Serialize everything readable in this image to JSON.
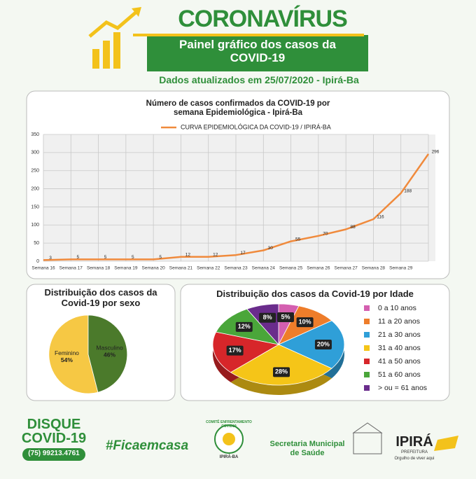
{
  "header": {
    "title": "CORONAVÍRUS",
    "subtitle": "Painel gráfico dos casos da COVID-19",
    "updated": "Dados atualizados em 25/07/2020 - Ipirá-Ba"
  },
  "chart_data": [
    {
      "type": "line",
      "title": "Número de casos confirmados da COVID-19 por semana Epidemiológica - Ipirá-Ba",
      "categories": [
        "Semana 16",
        "Semana 17",
        "Semana 18",
        "Semana 19",
        "Semana 20",
        "Semana 21",
        "Semana 22",
        "Semana 23",
        "Semana 24",
        "Semana 25",
        "Semana 26",
        "Semana 27",
        "Semana 28",
        "Semana 29",
        null
      ],
      "series": [
        {
          "name": "CURVA EPIDEMIOLÓGICA DA COVID-19 / IPIRÁ-BA",
          "color": "#f08a3c",
          "values": [
            3,
            5,
            5,
            5,
            5,
            12,
            12,
            17,
            30,
            55,
            70,
            88,
            116,
            188,
            296
          ]
        }
      ],
      "ylim": [
        0,
        350
      ],
      "yticks": [
        0,
        50,
        100,
        150,
        200,
        250,
        300,
        350
      ],
      "grid": true,
      "legend": "top"
    },
    {
      "type": "pie",
      "title": "Distribuição dos casos da Covid-19 por sexo",
      "categories": [
        "Feminino",
        "Masculino"
      ],
      "values": [
        54,
        46
      ],
      "value_labels": [
        "54%",
        "46%"
      ],
      "colors": [
        "#f6c844",
        "#4b7a2b"
      ]
    },
    {
      "type": "pie",
      "title": "Distribuição dos casos da Covid-19 por Idade",
      "categories": [
        "0 a 10 anos",
        "11 a 20 anos",
        "21 a 30 anos",
        "31 a 40 anos",
        "41 a 50 anos",
        "51 a 60 anos",
        "> ou = 61 anos"
      ],
      "values": [
        5,
        10,
        20,
        28,
        17,
        12,
        8
      ],
      "value_labels": [
        "5%",
        "10%",
        "20%",
        "28%",
        "17%",
        "12%",
        "8%"
      ],
      "colors": [
        "#d45fb0",
        "#ee7d2a",
        "#2f9fd8",
        "#f5c518",
        "#d7262a",
        "#4aa63a",
        "#6a2c8c"
      ],
      "legend": "right"
    }
  ],
  "footer": {
    "hotline_title": "DISQUE COVID-19",
    "phone": "(75) 99213.4761",
    "hashtag": "#Ficaemcasa",
    "committee": "COMITÊ ENFRENTAMENTO COVID19",
    "committee_place": "IPIRÁ-BA",
    "secretariat": "Secretaria Municipal de Saúde",
    "city": "IPIRÁ",
    "city_sub": "PREFEITURA",
    "motto": "Orgulho de viver aqui"
  }
}
